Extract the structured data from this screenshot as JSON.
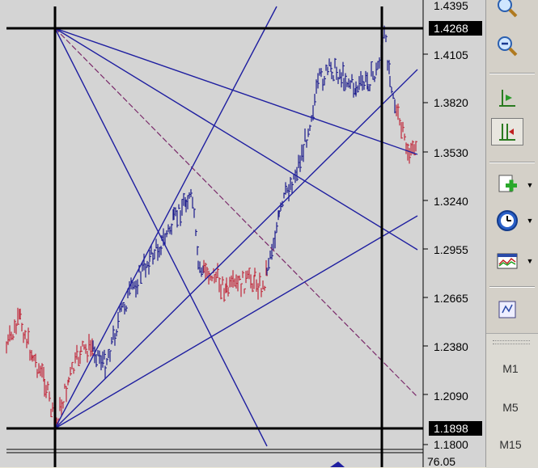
{
  "chart": {
    "background": "#d4d4d4",
    "bull_color": "#1a1a8c",
    "bear_color": "#c0283a",
    "line_color": "#1e1ea0",
    "price_labels": [
      "1.4105",
      "1.3820",
      "1.3530",
      "1.3240",
      "1.2955",
      "1.2665",
      "1.2380",
      "1.2090",
      "1.1800"
    ],
    "top_partial_label": "1.4395",
    "high_marker": "1.4268",
    "low_marker": "1.1898",
    "indicator_label": "76.05"
  },
  "toolbar": {
    "zoom_in": "zoom-in-icon",
    "zoom_out": "zoom-out-icon",
    "chart_shift": "chart-shift-icon",
    "autoscroll": "autoscroll-icon",
    "new_chart": "new-chart-icon",
    "periods": "periodicity-clock-icon",
    "templates": "templates-icon",
    "properties": "properties-icon"
  },
  "timeframes": [
    "M1",
    "M5",
    "M15"
  ]
}
